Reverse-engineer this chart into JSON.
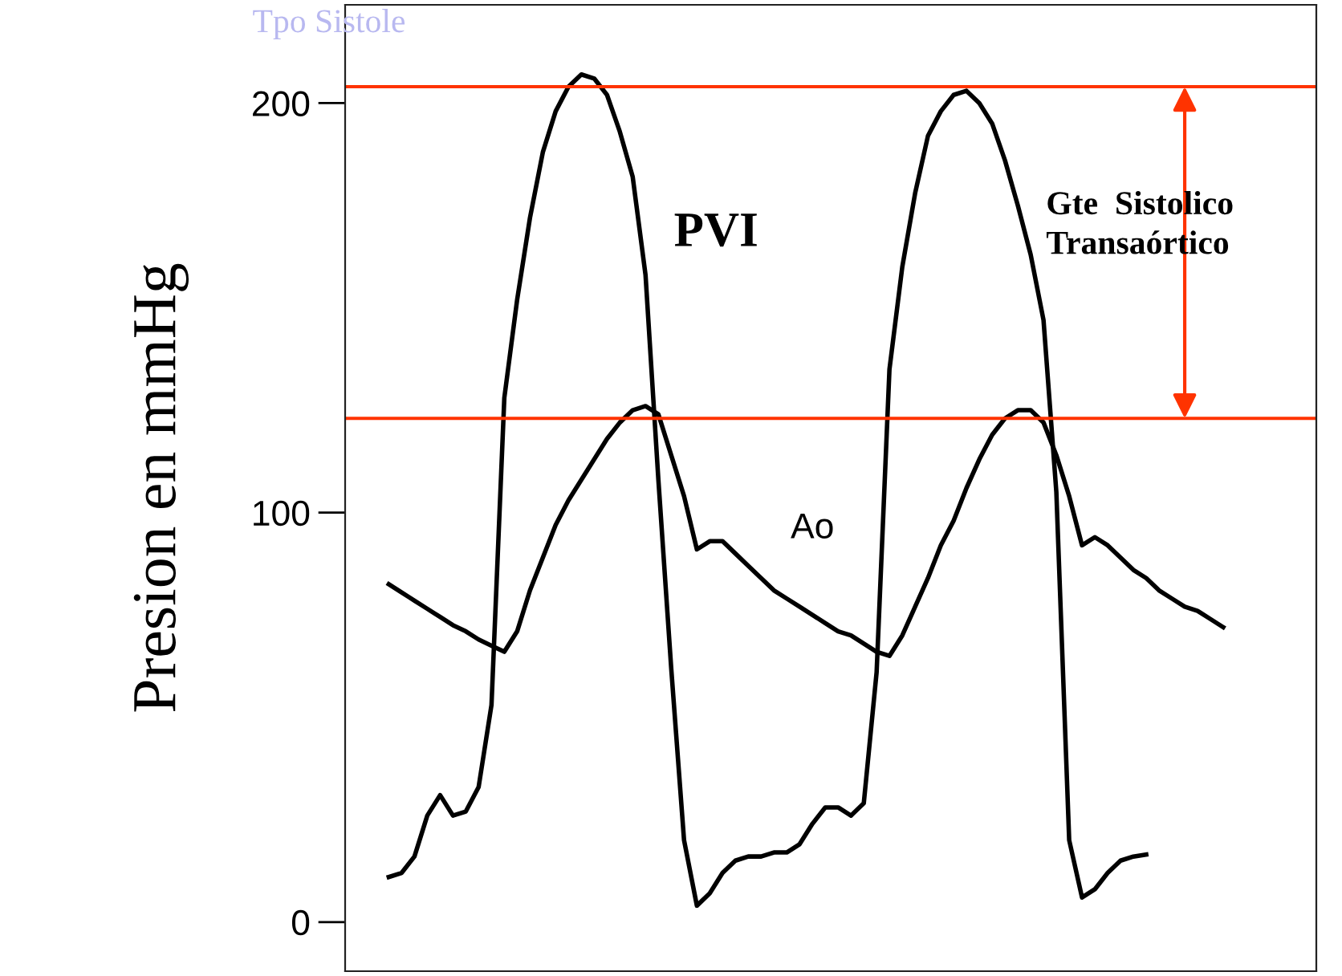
{
  "chart_data": {
    "type": "line",
    "title": "Tpo Sistole",
    "ylabel": "Presion en mmHg",
    "categories": [
      null,
      null,
      null,
      null,
      null,
      null,
      null,
      null,
      null,
      null,
      null,
      null,
      null,
      null,
      null,
      null,
      null,
      null,
      null,
      null,
      null,
      null,
      null,
      null,
      null,
      null,
      null,
      null,
      null,
      null,
      null,
      null,
      null,
      null,
      null,
      null,
      null,
      null,
      null,
      null,
      null,
      null,
      null,
      null,
      null,
      null,
      null,
      null,
      null,
      null,
      null,
      null,
      null,
      null,
      null,
      null,
      null,
      null,
      null,
      null,
      null,
      null,
      null,
      null,
      null,
      null
    ],
    "series": [
      {
        "name": "PVI",
        "color": "#000000",
        "values": [
          11,
          12,
          16,
          26,
          31,
          26,
          27,
          33,
          53,
          128,
          152,
          172,
          188,
          198,
          204,
          207,
          206,
          202,
          193,
          182,
          158,
          108,
          62,
          20,
          4,
          7,
          12,
          15,
          16,
          16,
          17,
          17,
          19,
          24,
          28,
          28,
          26,
          29,
          61,
          135,
          160,
          178,
          192,
          198,
          202,
          203,
          200,
          195,
          186,
          175,
          163,
          147,
          105,
          20,
          6,
          8,
          12,
          15,
          16,
          16.5,
          null,
          null,
          null,
          null,
          null,
          null
        ]
      },
      {
        "name": "Ao",
        "color": "#000000",
        "values": [
          82.5,
          80.5,
          78.5,
          76.5,
          74.5,
          72.5,
          71,
          69,
          67.5,
          66,
          71,
          81,
          89,
          97,
          103,
          108,
          113,
          118,
          122,
          125,
          126,
          124,
          114,
          104,
          91,
          93,
          93,
          90,
          87,
          84,
          81,
          79,
          77,
          75,
          73,
          71,
          70,
          68,
          66,
          65,
          70,
          77,
          84,
          92,
          98,
          106,
          113,
          119,
          123,
          125,
          125,
          122,
          114,
          104,
          92,
          94,
          92,
          89,
          86,
          84,
          81,
          79,
          77,
          76,
          74,
          72
        ]
      }
    ],
    "ylim": [
      -12,
      224
    ],
    "yticks": [
      0,
      100,
      200
    ],
    "tick_labels": "y",
    "ref_lines": [
      {
        "axis": "y",
        "value": 204,
        "color": "#ff3300"
      },
      {
        "axis": "y",
        "value": 123,
        "color": "#ff3300"
      }
    ],
    "annotations": [
      "Gte  Sistolico\nTransaórtico"
    ]
  }
}
